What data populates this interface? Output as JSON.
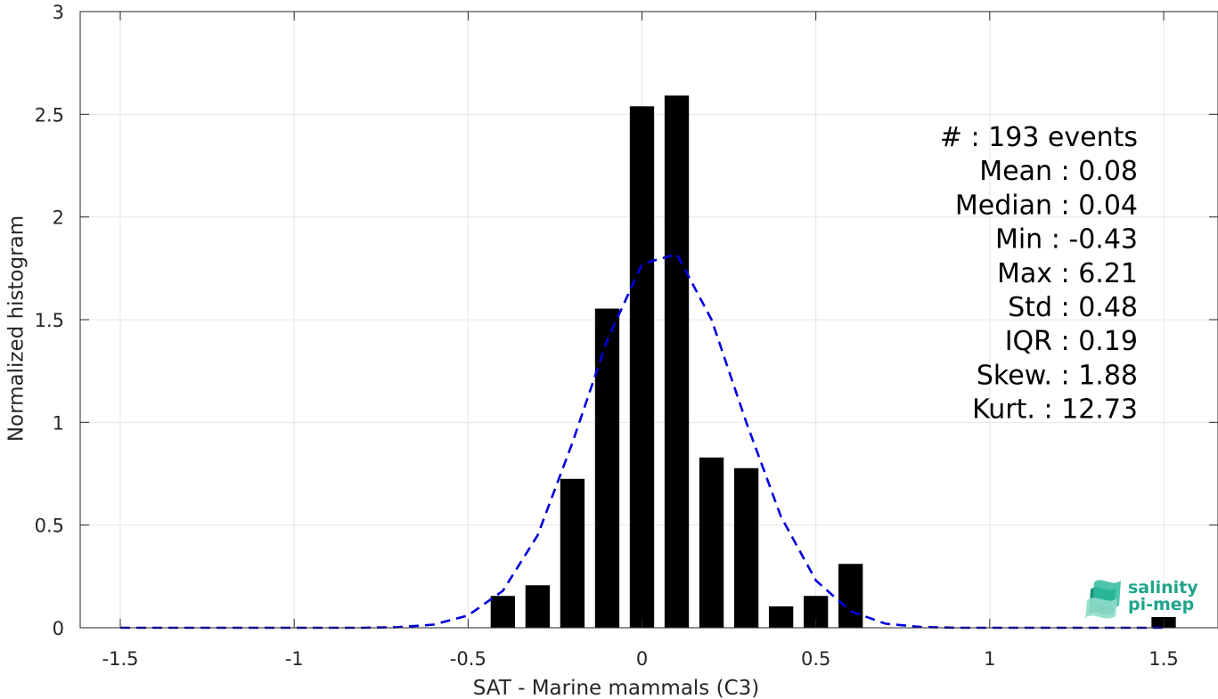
{
  "chart_data": {
    "type": "bar",
    "xlabel": "SAT - Marine mammals (C3)",
    "ylabel": "Normalized histogram",
    "xlim": [
      -1.5,
      1.5
    ],
    "ylim": [
      0,
      3
    ],
    "xticks": [
      -1.5,
      -1,
      -0.5,
      0,
      0.5,
      1,
      1.5
    ],
    "xtick_labels": [
      "-1.5",
      "-1",
      "-0.5",
      "0",
      "0.5",
      "1",
      "1.5"
    ],
    "yticks": [
      0,
      0.5,
      1,
      1.5,
      2,
      2.5,
      3
    ],
    "ytick_labels": [
      "0",
      "0.5",
      "1",
      "1.5",
      "2",
      "2.5",
      "3"
    ],
    "grid": true,
    "bar_color": "#000000",
    "bar_width": 0.07,
    "bars": [
      {
        "x": -0.4,
        "y": 0.155
      },
      {
        "x": -0.3,
        "y": 0.207
      },
      {
        "x": -0.2,
        "y": 0.725
      },
      {
        "x": -0.1,
        "y": 1.554
      },
      {
        "x": 0.0,
        "y": 2.539
      },
      {
        "x": 0.1,
        "y": 2.591
      },
      {
        "x": 0.2,
        "y": 0.829
      },
      {
        "x": 0.3,
        "y": 0.777
      },
      {
        "x": 0.4,
        "y": 0.104
      },
      {
        "x": 0.5,
        "y": 0.155
      },
      {
        "x": 0.6,
        "y": 0.311
      },
      {
        "x": 1.5,
        "y": 0.052
      }
    ],
    "fit_curve": {
      "color": "#0000dd",
      "style": "dashed",
      "x": [
        -1.5,
        -1.4,
        -1.3,
        -1.2,
        -1.1,
        -1.0,
        -0.9,
        -0.8,
        -0.7,
        -0.6,
        -0.5,
        -0.4,
        -0.3,
        -0.2,
        -0.1,
        0.0,
        0.1,
        0.2,
        0.3,
        0.4,
        0.5,
        0.6,
        0.7,
        0.8,
        0.9,
        1.0,
        1.1,
        1.2,
        1.3,
        1.4,
        1.5
      ],
      "y": [
        0,
        0,
        0,
        0,
        0,
        0,
        0,
        0,
        0.003,
        0.015,
        0.06,
        0.18,
        0.45,
        0.9,
        1.4,
        1.77,
        1.82,
        1.5,
        1.0,
        0.54,
        0.23,
        0.08,
        0.02,
        0.004,
        0,
        0,
        0,
        0,
        0,
        0,
        0
      ]
    },
    "stats": [
      "#  : 193 events",
      "Mean : 0.08",
      "Median : 0.04",
      "Min : -0.43",
      "Max : 6.21",
      "Std : 0.48",
      "IQR : 0.19",
      "Skew. : 1.88",
      "Kurt. : 12.73"
    ]
  },
  "logo": {
    "line1": "salinity",
    "line2": "pi-mep",
    "color": "#1fa58c"
  }
}
